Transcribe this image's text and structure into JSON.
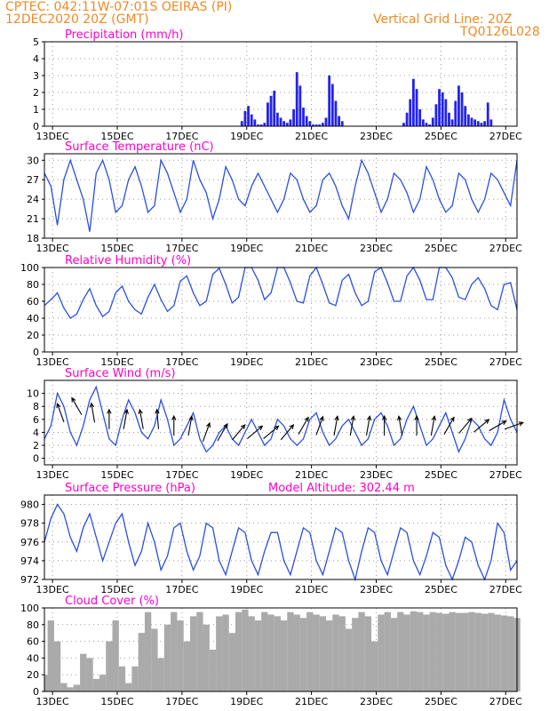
{
  "header": {
    "line1_left": "CPTEC:  042:11W-07:01S  OEIRAS (PI)",
    "line2_left": "12DEC2020 20Z (GMT)",
    "line1_right": "Vertical Grid Line: 20Z",
    "line2_right": "TQ0126L028"
  },
  "colors": {
    "header_text": "#f08a24",
    "panel_title": "#ff00cc",
    "series_line": "#2a4fe0",
    "precip_bar": "#2222ee",
    "cloud_fill": "#aaaaaa",
    "wind_arrow": "#000000"
  },
  "x_tick_labels": [
    "13DEC",
    "15DEC",
    "17DEC",
    "19DEC",
    "21DEC",
    "23DEC",
    "25DEC",
    "27DEC"
  ],
  "chart_data": [
    {
      "id": "precip",
      "type": "bar",
      "title": "Precipitation (mm/h)",
      "ylim": [
        0,
        5
      ],
      "yticks": [
        0,
        1,
        2,
        3,
        4,
        5
      ],
      "grid": true,
      "x_unit": "days since 12DEC2020 20Z",
      "x": [
        6.1,
        6.2,
        6.3,
        6.4,
        6.5,
        6.6,
        6.7,
        6.8,
        6.9,
        7.0,
        7.1,
        7.2,
        7.3,
        7.4,
        7.5,
        7.6,
        7.7,
        7.8,
        7.9,
        8.0,
        8.1,
        8.2,
        8.3,
        8.4,
        8.5,
        8.6,
        8.7,
        8.8,
        8.9,
        9.0,
        9.1,
        9.2,
        11.1,
        11.2,
        11.3,
        11.4,
        11.5,
        11.6,
        11.7,
        11.8,
        11.9,
        12.0,
        12.1,
        12.2,
        12.3,
        12.4,
        12.5,
        12.6,
        12.7,
        12.8,
        12.9,
        13.0,
        13.1,
        13.2,
        13.3,
        13.4,
        13.5,
        13.6,
        13.7,
        13.8
      ],
      "values": [
        0.3,
        0.9,
        1.2,
        0.7,
        0.4,
        0.1,
        0.1,
        0.2,
        1.4,
        1.8,
        2.1,
        0.8,
        0.5,
        0.3,
        0.2,
        0.4,
        1.0,
        3.2,
        2.4,
        1.1,
        0.6,
        0.3,
        0.1,
        0.1,
        0.1,
        0.2,
        0.5,
        3.0,
        2.5,
        1.5,
        0.6,
        0.3,
        0.2,
        0.8,
        1.6,
        2.8,
        2.2,
        1.0,
        0.4,
        0.2,
        0.1,
        0.5,
        1.3,
        2.2,
        2.0,
        1.6,
        0.8,
        0.4,
        1.5,
        2.4,
        2.0,
        1.2,
        0.7,
        0.5,
        0.4,
        0.3,
        0.2,
        0.3,
        1.4,
        0.4
      ]
    },
    {
      "id": "temp",
      "type": "line",
      "title": "Surface Temperature (nC)",
      "ylim": [
        18,
        31
      ],
      "yticks": [
        18,
        21,
        24,
        27,
        30
      ],
      "grid": true,
      "x_unit": "days since 12DEC2020 20Z",
      "x": [
        0,
        0.2,
        0.4,
        0.6,
        0.8,
        1,
        1.2,
        1.4,
        1.6,
        1.8,
        2,
        2.2,
        2.4,
        2.6,
        2.8,
        3,
        3.2,
        3.4,
        3.6,
        3.8,
        4,
        4.2,
        4.4,
        4.6,
        4.8,
        5,
        5.2,
        5.4,
        5.6,
        5.8,
        6,
        6.2,
        6.4,
        6.6,
        6.8,
        7,
        7.2,
        7.4,
        7.6,
        7.8,
        8,
        8.2,
        8.4,
        8.6,
        8.8,
        9,
        9.2,
        9.4,
        9.6,
        9.8,
        10,
        10.2,
        10.4,
        10.6,
        10.8,
        11,
        11.2,
        11.4,
        11.6,
        11.8,
        12,
        12.2,
        12.4,
        12.6,
        12.8,
        13,
        13.2,
        13.4,
        13.6,
        13.8,
        14,
        14.2,
        14.4,
        14.6
      ],
      "values": [
        28,
        26,
        20,
        27,
        30,
        27,
        24,
        19,
        28,
        30,
        27,
        22,
        23,
        27,
        29,
        26,
        22,
        23,
        30,
        28,
        25,
        22,
        24,
        30,
        27,
        25,
        21,
        24,
        29,
        27,
        24,
        23,
        26,
        28,
        26,
        24,
        22,
        24,
        28,
        27,
        24,
        22,
        23,
        27,
        28,
        26,
        23,
        21,
        26,
        30,
        28,
        25,
        22,
        24,
        28,
        27,
        25,
        22,
        24,
        29,
        27,
        24,
        22,
        23,
        28,
        27,
        24,
        22,
        24,
        28,
        27,
        25,
        23,
        30
      ]
    },
    {
      "id": "rh",
      "type": "line",
      "title": "Relative Humidity (%)",
      "ylim": [
        0,
        100
      ],
      "yticks": [
        0,
        20,
        40,
        60,
        80,
        100
      ],
      "grid": true,
      "x_unit": "days since 12DEC2020 20Z",
      "x": [
        0,
        0.2,
        0.4,
        0.6,
        0.8,
        1,
        1.2,
        1.4,
        1.6,
        1.8,
        2,
        2.2,
        2.4,
        2.6,
        2.8,
        3,
        3.2,
        3.4,
        3.6,
        3.8,
        4,
        4.2,
        4.4,
        4.6,
        4.8,
        5,
        5.2,
        5.4,
        5.6,
        5.8,
        6,
        6.2,
        6.4,
        6.6,
        6.8,
        7,
        7.2,
        7.4,
        7.6,
        7.8,
        8,
        8.2,
        8.4,
        8.6,
        8.8,
        9,
        9.2,
        9.4,
        9.6,
        9.8,
        10,
        10.2,
        10.4,
        10.6,
        10.8,
        11,
        11.2,
        11.4,
        11.6,
        11.8,
        12,
        12.2,
        12.4,
        12.6,
        12.8,
        13,
        13.2,
        13.4,
        13.6,
        13.8,
        14,
        14.2,
        14.4,
        14.6
      ],
      "values": [
        55,
        62,
        70,
        52,
        40,
        45,
        62,
        75,
        55,
        42,
        48,
        70,
        78,
        60,
        50,
        45,
        65,
        80,
        62,
        48,
        55,
        84,
        90,
        70,
        55,
        60,
        92,
        99,
        80,
        58,
        65,
        100,
        100,
        85,
        62,
        70,
        100,
        100,
        82,
        60,
        58,
        90,
        100,
        80,
        58,
        55,
        85,
        92,
        70,
        55,
        60,
        95,
        100,
        82,
        60,
        60,
        90,
        100,
        85,
        62,
        62,
        100,
        100,
        88,
        65,
        62,
        80,
        88,
        75,
        55,
        50,
        80,
        82,
        50
      ]
    },
    {
      "id": "wind",
      "type": "line",
      "title": "Surface Wind (m/s)",
      "ylim": [
        -1,
        12
      ],
      "yticks": [
        0,
        2,
        4,
        6,
        8,
        10
      ],
      "grid": true,
      "x_unit": "days since 12DEC2020 20Z",
      "x": [
        0,
        0.2,
        0.4,
        0.6,
        0.8,
        1,
        1.2,
        1.4,
        1.6,
        1.8,
        2,
        2.2,
        2.4,
        2.6,
        2.8,
        3,
        3.2,
        3.4,
        3.6,
        3.8,
        4,
        4.2,
        4.4,
        4.6,
        4.8,
        5,
        5.2,
        5.4,
        5.6,
        5.8,
        6,
        6.2,
        6.4,
        6.6,
        6.8,
        7,
        7.2,
        7.4,
        7.6,
        7.8,
        8,
        8.2,
        8.4,
        8.6,
        8.8,
        9,
        9.2,
        9.4,
        9.6,
        9.8,
        10,
        10.2,
        10.4,
        10.6,
        10.8,
        11,
        11.2,
        11.4,
        11.6,
        11.8,
        12,
        12.2,
        12.4,
        12.6,
        12.8,
        13,
        13.2,
        13.4,
        13.6,
        13.8,
        14,
        14.2,
        14.4,
        14.6
      ],
      "values": [
        3,
        5,
        10,
        8,
        4,
        2,
        5,
        9,
        11,
        7,
        3,
        2,
        6,
        9,
        7,
        4,
        3,
        5,
        9,
        6,
        2,
        3,
        5,
        7,
        3,
        1,
        2,
        4,
        5,
        3,
        2,
        4,
        6,
        4,
        2,
        3,
        6,
        5,
        3,
        2,
        3,
        6,
        7,
        4,
        2,
        3,
        5,
        6,
        4,
        2,
        3,
        6,
        7,
        5,
        2,
        3,
        6,
        8,
        5,
        2,
        3,
        5,
        7,
        4,
        1,
        3,
        6,
        5,
        3,
        2,
        4,
        9,
        6,
        4
      ],
      "arrows": {
        "x": [
          0.5,
          1.0,
          1.5,
          2.0,
          2.5,
          3.0,
          3.5,
          4.0,
          4.5,
          5.0,
          5.5,
          6.0,
          6.5,
          7.0,
          7.5,
          8.0,
          8.5,
          9.0,
          9.5,
          10.0,
          10.5,
          11.0,
          11.5,
          12.0,
          12.5,
          13.0,
          13.5,
          14.0,
          14.5
        ],
        "speed": [
          7,
          8,
          7,
          6,
          6,
          6,
          6,
          5,
          5,
          4,
          4,
          4,
          4,
          4,
          4,
          5,
          5,
          5,
          5,
          5,
          5,
          5,
          5,
          5,
          5,
          5,
          5,
          5,
          5
        ],
        "dir_deg": [
          110,
          120,
          100,
          90,
          80,
          100,
          95,
          90,
          80,
          70,
          60,
          50,
          40,
          40,
          50,
          60,
          70,
          80,
          80,
          80,
          90,
          100,
          90,
          80,
          60,
          50,
          40,
          30,
          20
        ]
      }
    },
    {
      "id": "pressure",
      "type": "line",
      "title": "Surface Pressure (hPa)",
      "annotation": "Model Altitude: 302.44 m",
      "ylim": [
        972,
        981
      ],
      "yticks": [
        972,
        974,
        976,
        978,
        980
      ],
      "grid": true,
      "x_unit": "days since 12DEC2020 20Z",
      "x": [
        0,
        0.2,
        0.4,
        0.6,
        0.8,
        1,
        1.2,
        1.4,
        1.6,
        1.8,
        2,
        2.2,
        2.4,
        2.6,
        2.8,
        3,
        3.2,
        3.4,
        3.6,
        3.8,
        4,
        4.2,
        4.4,
        4.6,
        4.8,
        5,
        5.2,
        5.4,
        5.6,
        5.8,
        6,
        6.2,
        6.4,
        6.6,
        6.8,
        7,
        7.2,
        7.4,
        7.6,
        7.8,
        8,
        8.2,
        8.4,
        8.6,
        8.8,
        9,
        9.2,
        9.4,
        9.6,
        9.8,
        10,
        10.2,
        10.4,
        10.6,
        10.8,
        11,
        11.2,
        11.4,
        11.6,
        11.8,
        12,
        12.2,
        12.4,
        12.6,
        12.8,
        13,
        13.2,
        13.4,
        13.6,
        13.8,
        14,
        14.2,
        14.4,
        14.6
      ],
      "values": [
        976,
        978.5,
        980,
        979,
        976.5,
        975,
        977.5,
        979,
        976.5,
        974,
        976,
        978,
        979,
        976,
        973.5,
        975,
        978,
        976,
        973,
        974.5,
        977.5,
        978,
        975,
        973,
        974.5,
        978,
        977.5,
        974,
        972.5,
        975,
        977.5,
        977,
        974,
        972.5,
        975,
        977,
        977,
        974,
        972.5,
        975,
        977.5,
        977,
        974,
        972.5,
        975,
        977.5,
        977,
        974,
        972,
        975,
        977.5,
        977,
        974,
        972.5,
        975,
        977.5,
        977,
        974,
        972.5,
        974.5,
        977,
        976.5,
        973.5,
        972,
        974,
        976.5,
        976,
        973.5,
        972,
        974,
        978,
        977,
        973,
        974
      ]
    },
    {
      "id": "cloud",
      "type": "area",
      "title": "Cloud Cover (%)",
      "ylim": [
        0,
        100
      ],
      "yticks": [
        0,
        20,
        40,
        60,
        80,
        100
      ],
      "grid": true,
      "x_unit": "days since 12DEC2020 20Z",
      "x": [
        0,
        0.2,
        0.4,
        0.6,
        0.8,
        1,
        1.2,
        1.4,
        1.6,
        1.8,
        2,
        2.2,
        2.4,
        2.6,
        2.8,
        3,
        3.2,
        3.4,
        3.6,
        3.8,
        4,
        4.2,
        4.4,
        4.6,
        4.8,
        5,
        5.2,
        5.4,
        5.6,
        5.8,
        6,
        6.2,
        6.4,
        6.6,
        6.8,
        7,
        7.2,
        7.4,
        7.6,
        7.8,
        8,
        8.2,
        8.4,
        8.6,
        8.8,
        9,
        9.2,
        9.4,
        9.6,
        9.8,
        10,
        10.2,
        10.4,
        10.6,
        10.8,
        11,
        11.2,
        11.4,
        11.6,
        11.8,
        12,
        12.2,
        12.4,
        12.6,
        12.8,
        13,
        13.2,
        13.4,
        13.6,
        13.8,
        14,
        14.2,
        14.4,
        14.6
      ],
      "values": [
        20,
        85,
        60,
        10,
        5,
        8,
        45,
        40,
        15,
        20,
        60,
        85,
        30,
        10,
        30,
        70,
        95,
        75,
        40,
        80,
        95,
        85,
        60,
        90,
        95,
        80,
        50,
        90,
        92,
        70,
        95,
        98,
        90,
        85,
        95,
        92,
        90,
        85,
        95,
        92,
        88,
        95,
        92,
        90,
        85,
        92,
        90,
        75,
        88,
        95,
        90,
        60,
        92,
        95,
        88,
        95,
        92,
        96,
        95,
        92,
        95,
        94,
        93,
        95,
        94,
        94,
        95,
        94,
        93,
        94,
        92,
        91,
        90,
        88
      ]
    }
  ]
}
